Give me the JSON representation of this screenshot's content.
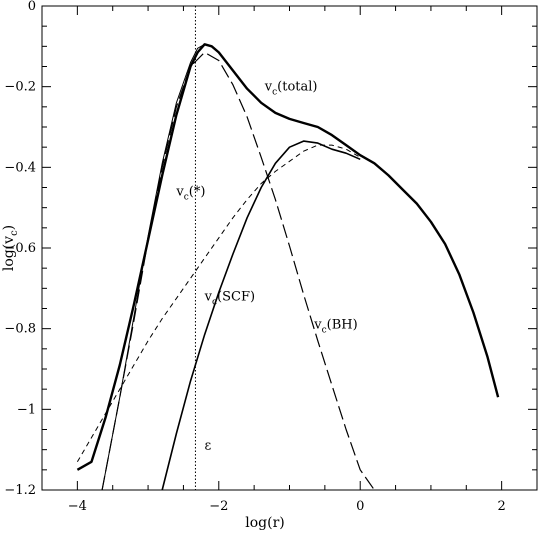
{
  "chart_data": {
    "type": "line",
    "xlabel": "log(r)",
    "ylabel": "log(v_c)",
    "xlim": [
      -4.5,
      2.5
    ],
    "ylim": [
      -1.2,
      0
    ],
    "x_ticks": [
      -4,
      -2,
      0,
      2
    ],
    "x_tick_labels": [
      "−4",
      "−2",
      "0",
      "2"
    ],
    "y_ticks": [
      0,
      -0.2,
      -0.4,
      -0.6,
      -0.8,
      -1,
      -1.2
    ],
    "y_tick_labels": [
      "0",
      "−0.2",
      "−0.4",
      "−0.6",
      "−0.8",
      "−1",
      "−1.2"
    ],
    "grid": false,
    "epsilon_line": {
      "x": -2.33,
      "label": "ε"
    },
    "series": [
      {
        "name": "v_c(total)",
        "style": "thick-solid",
        "x": [
          -4.0,
          -3.8,
          -3.6,
          -3.4,
          -3.2,
          -3.0,
          -2.8,
          -2.6,
          -2.4,
          -2.3,
          -2.2,
          -2.1,
          -2.0,
          -1.8,
          -1.6,
          -1.4,
          -1.2,
          -1.0,
          -0.8,
          -0.6,
          -0.4,
          -0.2,
          0.0,
          0.2,
          0.4,
          0.6,
          0.8,
          1.0,
          1.2,
          1.4,
          1.6,
          1.8,
          1.95
        ],
        "y": [
          -1.15,
          -1.13,
          -1.02,
          -0.89,
          -0.74,
          -0.58,
          -0.42,
          -0.27,
          -0.15,
          -0.115,
          -0.095,
          -0.1,
          -0.115,
          -0.16,
          -0.205,
          -0.24,
          -0.265,
          -0.28,
          -0.29,
          -0.3,
          -0.32,
          -0.345,
          -0.37,
          -0.39,
          -0.42,
          -0.455,
          -0.49,
          -0.535,
          -0.59,
          -0.665,
          -0.76,
          -0.87,
          -0.97
        ]
      },
      {
        "name": "v_c(*)",
        "style": "short-dash",
        "x": [
          -4.0,
          -3.8,
          -3.6,
          -3.4,
          -3.2,
          -3.0,
          -2.8,
          -2.6,
          -2.4,
          -2.2,
          -2.0,
          -1.8,
          -1.6,
          -1.4,
          -1.2,
          -1.0,
          -0.8,
          -0.6,
          -0.4,
          -0.2,
          0.0
        ],
        "y": [
          -1.13,
          -1.07,
          -1.01,
          -0.95,
          -0.89,
          -0.83,
          -0.775,
          -0.725,
          -0.675,
          -0.625,
          -0.575,
          -0.525,
          -0.48,
          -0.44,
          -0.41,
          -0.385,
          -0.36,
          -0.345,
          -0.345,
          -0.355,
          -0.375
        ]
      },
      {
        "name": "v_c(SCF)",
        "style": "medium-solid",
        "x": [
          -2.8,
          -2.6,
          -2.4,
          -2.2,
          -2.0,
          -1.8,
          -1.6,
          -1.4,
          -1.2,
          -1.0,
          -0.8,
          -0.6,
          -0.4,
          -0.2,
          0.0
        ],
        "y": [
          -1.2,
          -1.06,
          -0.93,
          -0.815,
          -0.71,
          -0.615,
          -0.525,
          -0.45,
          -0.39,
          -0.35,
          -0.335,
          -0.34,
          -0.355,
          -0.365,
          -0.38
        ]
      },
      {
        "name": "v_c(BH)",
        "style": "long-dash",
        "x": [
          -3.65,
          -3.4,
          -3.2,
          -3.0,
          -2.8,
          -2.6,
          -2.4,
          -2.2,
          -2.0,
          -1.8,
          -1.6,
          -1.4,
          -1.2,
          -1.0,
          -0.8,
          -0.6,
          -0.4,
          -0.2,
          0.0,
          0.2
        ],
        "y": [
          -1.2,
          -0.97,
          -0.78,
          -0.58,
          -0.4,
          -0.25,
          -0.15,
          -0.115,
          -0.135,
          -0.195,
          -0.275,
          -0.375,
          -0.48,
          -0.595,
          -0.715,
          -0.83,
          -0.94,
          -1.05,
          -1.15,
          -1.2
        ]
      },
      {
        "name": "",
        "style": "thin-solid",
        "x": [
          -3.65,
          -3.4,
          -3.2,
          -3.0,
          -2.8,
          -2.6,
          -2.4,
          -2.3,
          -2.2,
          -2.1,
          -2.0
        ],
        "y": [
          -1.2,
          -0.97,
          -0.77,
          -0.57,
          -0.39,
          -0.24,
          -0.14,
          -0.105,
          -0.095,
          -0.1,
          -0.115
        ]
      }
    ],
    "annotations": [
      {
        "text": "v",
        "sub": "c",
        "rest": "(total)",
        "x": -1.35,
        "y": -0.21
      },
      {
        "text": "v",
        "sub": "c",
        "rest": "(*)",
        "x": -2.6,
        "y": -0.47
      },
      {
        "text": "v",
        "sub": "c",
        "rest": "(SCF)",
        "x": -2.2,
        "y": -0.73
      },
      {
        "text": "v",
        "sub": "c",
        "rest": "(BH)",
        "x": -0.65,
        "y": -0.8
      }
    ]
  }
}
